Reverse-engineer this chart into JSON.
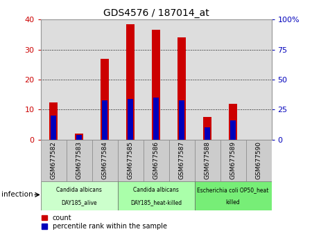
{
  "title": "GDS4576 / 187014_at",
  "samples": [
    "GSM677582",
    "GSM677583",
    "GSM677584",
    "GSM677585",
    "GSM677586",
    "GSM677587",
    "GSM677588",
    "GSM677589",
    "GSM677590"
  ],
  "count_values": [
    12.5,
    2.0,
    27.0,
    38.5,
    36.5,
    34.0,
    7.5,
    12.0,
    0.0
  ],
  "percentile_values": [
    8.0,
    1.5,
    13.0,
    13.5,
    14.0,
    13.0,
    4.0,
    6.5,
    0.0
  ],
  "left_ylim": [
    0,
    40
  ],
  "right_ylim": [
    0,
    100
  ],
  "left_yticks": [
    0,
    10,
    20,
    30,
    40
  ],
  "right_yticks": [
    0,
    25,
    50,
    75,
    100
  ],
  "right_yticklabels": [
    "0",
    "25",
    "50",
    "75",
    "100%"
  ],
  "bar_color": "#cc0000",
  "percentile_color": "#0000bb",
  "bar_width": 0.35,
  "groups": [
    {
      "label": "Candida albicans\nDAY185_alive",
      "start": 0,
      "end": 3,
      "color": "#ccffcc"
    },
    {
      "label": "Candida albicans\nDAY185_heat-killed",
      "start": 3,
      "end": 6,
      "color": "#aaffaa"
    },
    {
      "label": "Escherichia coli OP50_heat\nkilled",
      "start": 6,
      "end": 9,
      "color": "#77ee77"
    }
  ],
  "infection_label": "infection",
  "legend_count_label": "count",
  "legend_percentile_label": "percentile rank within the sample",
  "plot_bg_color": "#dddddd",
  "xtick_bg_color": "#cccccc"
}
